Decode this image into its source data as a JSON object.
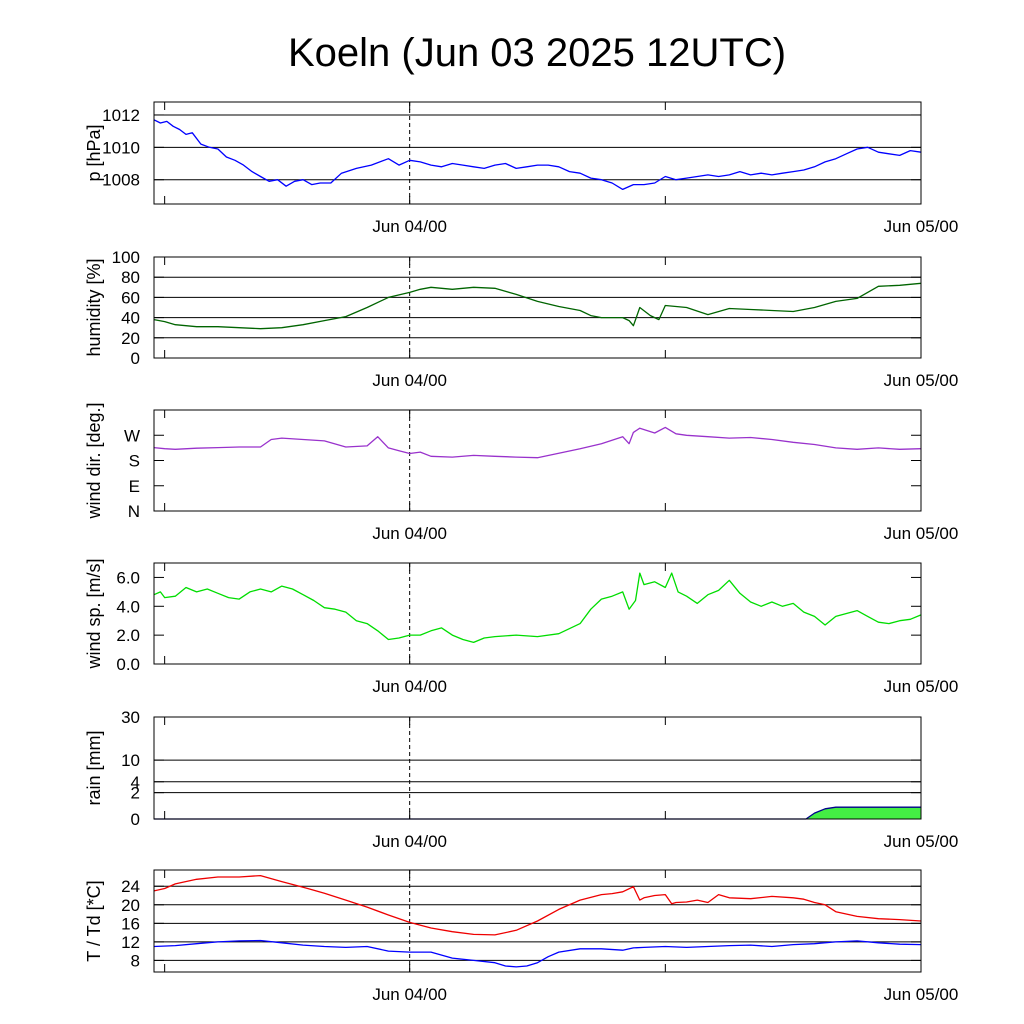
{
  "chart_data": {
    "type": "line",
    "title": "Koeln (Jun 03 2025 12UTC)",
    "x_unit": "hours since Jun 03 2025 12UTC",
    "x_range": [
      0,
      36
    ],
    "x_tick_labels": [
      {
        "x": 12,
        "label": "Jun 04/00"
      },
      {
        "x": 36,
        "label": "Jun 05/00"
      }
    ],
    "minor_ticks": [
      0.5,
      12,
      24
    ],
    "vertical_marker": 12,
    "panels": [
      {
        "id": "pressure",
        "ylabel": "p [hPa]",
        "ylim": [
          1006.5,
          1012.8
        ],
        "yticks": [
          {
            "v": 1008,
            "label": "1008"
          },
          {
            "v": 1010,
            "label": "1010"
          },
          {
            "v": 1012,
            "label": "1012"
          }
        ],
        "grid": [
          1008,
          1010,
          1012
        ],
        "series": [
          {
            "color": "#0000ff",
            "x": [
              0,
              0.3,
              0.6,
              0.9,
              1.2,
              1.5,
              1.8,
              2.2,
              2.6,
              3.0,
              3.4,
              3.8,
              4.2,
              4.6,
              5.0,
              5.4,
              5.8,
              6.2,
              6.6,
              7.0,
              7.4,
              7.8,
              8.3,
              8.8,
              9.5,
              10.2,
              11.0,
              11.5,
              12.0,
              12.5,
              13.0,
              13.5,
              14.0,
              14.5,
              15.0,
              15.5,
              16.0,
              16.5,
              17.0,
              17.5,
              18.0,
              18.5,
              19.0,
              19.5,
              20.0,
              20.5,
              21.0,
              21.5,
              22.0,
              22.5,
              23.0,
              23.5,
              24.0,
              24.5,
              25.0,
              25.5,
              26.0,
              26.5,
              27.0,
              27.5,
              28.0,
              28.5,
              29.0,
              29.5,
              30.0,
              30.5,
              31.0,
              31.5,
              32.0,
              32.5,
              33.0,
              33.5,
              34.0,
              34.5,
              35.0,
              35.5,
              36.0
            ],
            "y": [
              1011.7,
              1011.5,
              1011.6,
              1011.3,
              1011.1,
              1010.8,
              1010.9,
              1010.2,
              1010.0,
              1009.9,
              1009.4,
              1009.2,
              1008.9,
              1008.5,
              1008.2,
              1007.9,
              1008.0,
              1007.6,
              1007.9,
              1008.0,
              1007.7,
              1007.8,
              1007.8,
              1008.4,
              1008.7,
              1008.9,
              1009.3,
              1008.9,
              1009.2,
              1009.1,
              1008.9,
              1008.8,
              1009.0,
              1008.9,
              1008.8,
              1008.7,
              1008.9,
              1009.0,
              1008.7,
              1008.8,
              1008.9,
              1008.9,
              1008.8,
              1008.5,
              1008.4,
              1008.1,
              1008.0,
              1007.8,
              1007.4,
              1007.7,
              1007.7,
              1007.8,
              1008.2,
              1008.0,
              1008.1,
              1008.2,
              1008.3,
              1008.2,
              1008.3,
              1008.5,
              1008.3,
              1008.4,
              1008.3,
              1008.4,
              1008.5,
              1008.6,
              1008.8,
              1009.1,
              1009.3,
              1009.6,
              1009.9,
              1010.0,
              1009.7,
              1009.6,
              1009.5,
              1009.8,
              1009.7
            ]
          }
        ]
      },
      {
        "id": "humidity",
        "ylabel": "humidity [%]",
        "ylim": [
          0,
          100
        ],
        "yticks": [
          {
            "v": 0,
            "label": "0"
          },
          {
            "v": 20,
            "label": "20"
          },
          {
            "v": 40,
            "label": "40"
          },
          {
            "v": 60,
            "label": "60"
          },
          {
            "v": 80,
            "label": "80"
          },
          {
            "v": 100,
            "label": "100"
          }
        ],
        "grid": [
          20,
          40,
          60,
          80
        ],
        "series": [
          {
            "color": "#006400",
            "x": [
              0,
              0.5,
              1.0,
              1.5,
              2.0,
              3.0,
              4.0,
              5.0,
              6.0,
              7.0,
              8.0,
              9.0,
              10.0,
              11.0,
              12.0,
              12.5,
              13.0,
              14.0,
              15.0,
              16.0,
              17.0,
              18.0,
              19.0,
              20.0,
              20.5,
              21.0,
              22.0,
              22.3,
              22.5,
              22.8,
              23.3,
              23.7,
              24.0,
              24.5,
              25.0,
              26.0,
              27.0,
              28.0,
              29.0,
              30.0,
              31.0,
              32.0,
              33.0,
              34.0,
              35.0,
              36.0
            ],
            "y": [
              38,
              36,
              33,
              32,
              31,
              31,
              30,
              29,
              30,
              33,
              37,
              41,
              50,
              60,
              65,
              68,
              70,
              68,
              70,
              69,
              63,
              56,
              51,
              47,
              42,
              40,
              40,
              37,
              32,
              50,
              42,
              38,
              52,
              51,
              50,
              43,
              49,
              48,
              47,
              46,
              50,
              56,
              59,
              71,
              72,
              74
            ]
          }
        ]
      },
      {
        "id": "wind_dir",
        "ylabel": "wind dir. [deg.]",
        "ylim": [
          0,
          360
        ],
        "yticks": [
          {
            "v": 0,
            "label": "N"
          },
          {
            "v": 90,
            "label": "E"
          },
          {
            "v": 180,
            "label": "S"
          },
          {
            "v": 270,
            "label": "W"
          }
        ],
        "grid": [],
        "series": [
          {
            "color": "#9932cc",
            "x": [
              0,
              0.5,
              1.0,
              2.0,
              3.0,
              4.0,
              5.0,
              5.5,
              6.0,
              7.0,
              8.0,
              9.0,
              10.0,
              10.5,
              11.0,
              11.5,
              12.0,
              12.5,
              13.0,
              14.0,
              15.0,
              16.0,
              17.0,
              18.0,
              19.0,
              20.0,
              21.0,
              22.0,
              22.3,
              22.5,
              22.8,
              23.5,
              24.0,
              24.5,
              25.0,
              26.0,
              27.0,
              28.0,
              29.0,
              30.0,
              31.0,
              32.0,
              33.0,
              34.0,
              35.0,
              36.0
            ],
            "y": [
              226,
              222,
              220,
              224,
              226,
              228,
              228,
              255,
              260,
              255,
              250,
              228,
              232,
              265,
              225,
              215,
              205,
              210,
              195,
              192,
              198,
              195,
              192,
              190,
              206,
              222,
              240,
              265,
              240,
              280,
              295,
              278,
              298,
              275,
              270,
              265,
              260,
              262,
              255,
              245,
              237,
              225,
              220,
              225,
              220,
              222
            ]
          }
        ]
      },
      {
        "id": "wind_speed",
        "ylabel": "wind sp. [m/s]",
        "ylim": [
          0,
          7
        ],
        "yticks": [
          {
            "v": 0,
            "label": "0.0"
          },
          {
            "v": 2,
            "label": "2.0"
          },
          {
            "v": 4,
            "label": "4.0"
          },
          {
            "v": 6,
            "label": "6.0"
          }
        ],
        "grid": [],
        "series": [
          {
            "color": "#00dd00",
            "x": [
              0,
              0.3,
              0.5,
              1.0,
              1.5,
              2.0,
              2.5,
              3.0,
              3.5,
              4.0,
              4.5,
              5.0,
              5.5,
              6.0,
              6.5,
              7.0,
              7.5,
              8.0,
              8.5,
              9.0,
              9.5,
              10.0,
              10.5,
              11.0,
              11.5,
              12.0,
              12.5,
              13.0,
              13.5,
              14.0,
              14.5,
              15.0,
              15.5,
              16.0,
              17.0,
              18.0,
              19.0,
              20.0,
              20.5,
              21.0,
              21.5,
              22.0,
              22.3,
              22.6,
              22.8,
              23.0,
              23.5,
              24.0,
              24.3,
              24.6,
              25.0,
              25.5,
              26.0,
              26.5,
              27.0,
              27.5,
              28.0,
              28.5,
              29.0,
              29.5,
              30.0,
              30.5,
              31.0,
              31.5,
              32.0,
              33.0,
              33.5,
              34.0,
              34.5,
              35.0,
              35.5,
              36.0
            ],
            "y": [
              4.8,
              5.0,
              4.6,
              4.7,
              5.3,
              5.0,
              5.2,
              4.9,
              4.6,
              4.5,
              5.0,
              5.2,
              5.0,
              5.4,
              5.2,
              4.8,
              4.4,
              3.9,
              3.8,
              3.6,
              3.0,
              2.8,
              2.3,
              1.7,
              1.8,
              2.0,
              2.0,
              2.3,
              2.5,
              2.0,
              1.7,
              1.5,
              1.8,
              1.9,
              2.0,
              1.9,
              2.1,
              2.8,
              3.8,
              4.5,
              4.7,
              5.0,
              3.8,
              4.4,
              6.3,
              5.5,
              5.7,
              5.3,
              6.3,
              5.0,
              4.7,
              4.2,
              4.8,
              5.1,
              5.8,
              4.9,
              4.3,
              4.0,
              4.3,
              4.0,
              4.2,
              3.6,
              3.3,
              2.7,
              3.3,
              3.7,
              3.3,
              2.9,
              2.8,
              3.0,
              3.1,
              3.4
            ]
          }
        ]
      },
      {
        "id": "rain",
        "ylabel": "rain [mm]",
        "ylim": [
          0,
          30
        ],
        "scale": "rain",
        "yticks": [
          {
            "v": 0,
            "label": "0"
          },
          {
            "v": 2,
            "label": "2"
          },
          {
            "v": 4,
            "label": "4"
          },
          {
            "v": 10,
            "label": "10"
          },
          {
            "v": 30,
            "label": "30"
          }
        ],
        "grid": [
          2,
          4,
          10,
          30
        ],
        "series": [
          {
            "color": "#00008b",
            "fill": "#44ee44",
            "x": [
              0,
              30.6,
              31.0,
              31.5,
              32.0,
              34.0,
              36.0
            ],
            "y": [
              0,
              0,
              0.1,
              0.3,
              0.4,
              0.4,
              0.4
            ]
          }
        ]
      },
      {
        "id": "temperature",
        "ylabel": "T / Td [*C]",
        "ylim": [
          5.5,
          27.5
        ],
        "yticks": [
          {
            "v": 8,
            "label": "8"
          },
          {
            "v": 12,
            "label": "12"
          },
          {
            "v": 16,
            "label": "16"
          },
          {
            "v": 20,
            "label": "20"
          },
          {
            "v": 24,
            "label": "24"
          }
        ],
        "grid": [
          8,
          12,
          16,
          20,
          24
        ],
        "series": [
          {
            "color": "#ee0000",
            "x": [
              0,
              0.5,
              1.0,
              2.0,
              3.0,
              4.0,
              5.0,
              6.0,
              7.0,
              8.0,
              9.0,
              10.0,
              11.0,
              12.0,
              13.0,
              14.0,
              15.0,
              16.0,
              17.0,
              18.0,
              19.0,
              20.0,
              21.0,
              21.5,
              22.0,
              22.5,
              22.8,
              23.0,
              23.5,
              24.0,
              24.3,
              24.5,
              25.0,
              25.5,
              26.0,
              26.5,
              27.0,
              28.0,
              29.0,
              30.0,
              30.5,
              31.0,
              31.5,
              32.0,
              33.0,
              34.0,
              35.0,
              36.0
            ],
            "y": [
              23.0,
              23.5,
              24.5,
              25.5,
              26.0,
              26.0,
              26.3,
              25.0,
              23.8,
              22.5,
              21.0,
              19.5,
              17.8,
              16.2,
              15.0,
              14.2,
              13.6,
              13.5,
              14.5,
              16.5,
              19.0,
              21.0,
              22.2,
              22.4,
              22.8,
              23.9,
              21.0,
              21.5,
              22.0,
              22.2,
              20.2,
              20.5,
              20.6,
              21.0,
              20.5,
              22.2,
              21.5,
              21.3,
              21.8,
              21.5,
              21.2,
              20.5,
              20.0,
              18.5,
              17.5,
              17.0,
              16.8,
              16.5
            ]
          },
          {
            "color": "#0000ff",
            "x": [
              0,
              1.0,
              2.0,
              3.0,
              4.0,
              5.0,
              6.0,
              7.0,
              8.0,
              9.0,
              10.0,
              11.0,
              12.0,
              13.0,
              14.0,
              15.0,
              16.0,
              16.5,
              17.0,
              17.5,
              18.0,
              18.5,
              19.0,
              20.0,
              21.0,
              22.0,
              22.5,
              23.0,
              24.0,
              25.0,
              26.0,
              27.0,
              28.0,
              29.0,
              30.0,
              31.0,
              32.0,
              33.0,
              34.0,
              35.0,
              36.0
            ],
            "y": [
              11.0,
              11.2,
              11.6,
              12.0,
              12.2,
              12.3,
              11.8,
              11.3,
              11.0,
              10.8,
              11.0,
              10.0,
              9.8,
              9.8,
              8.5,
              8.0,
              7.5,
              6.8,
              6.6,
              6.8,
              7.5,
              8.8,
              9.8,
              10.5,
              10.5,
              10.2,
              10.7,
              10.8,
              11.0,
              10.8,
              11.0,
              11.2,
              11.3,
              11.0,
              11.4,
              11.6,
              12.0,
              12.2,
              11.8,
              11.5,
              11.4
            ]
          }
        ]
      }
    ]
  }
}
